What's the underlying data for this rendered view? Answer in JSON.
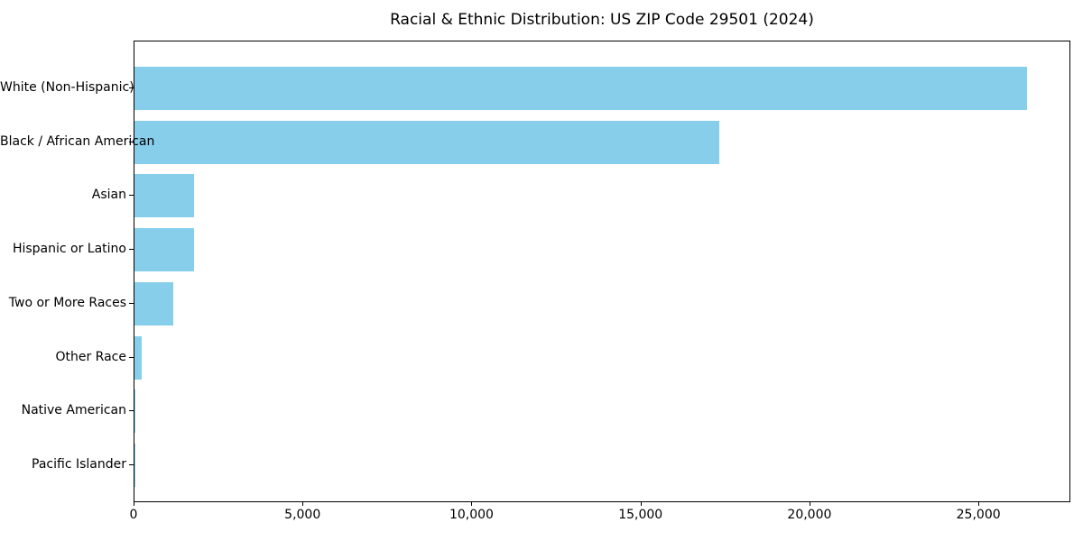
{
  "chart_data": {
    "type": "bar",
    "orientation": "horizontal",
    "title": "Racial & Ethnic Distribution: US ZIP Code 29501 (2024)",
    "categories": [
      "White (Non-Hispanic)",
      "Black / African American",
      "Asian",
      "Hispanic or Latino",
      "Two or More Races",
      "Other Race",
      "Native American",
      "Pacific Islander"
    ],
    "values": [
      26400,
      17300,
      1750,
      1770,
      1140,
      210,
      40,
      15
    ],
    "xlabel": "",
    "ylabel": "",
    "xlim": [
      0,
      27720
    ],
    "xticks": [
      0,
      5000,
      10000,
      15000,
      20000,
      25000
    ],
    "xtick_labels": [
      "0",
      "5,000",
      "10,000",
      "15,000",
      "20,000",
      "25,000"
    ],
    "bar_color": "#87CEEB",
    "frame_color": "#000000",
    "text_color": "#000000",
    "background_color": "#ffffff",
    "grid": false,
    "legend": null
  }
}
